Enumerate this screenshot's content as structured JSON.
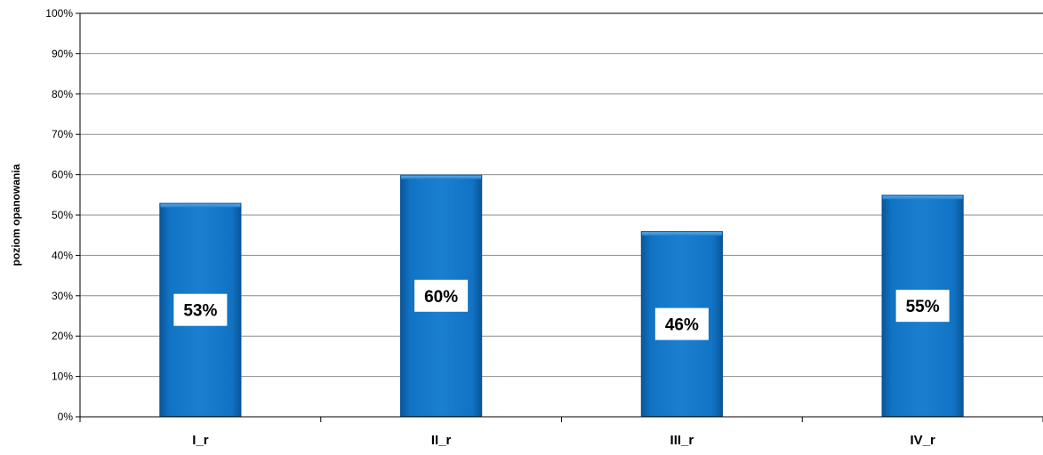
{
  "chart_data": {
    "type": "bar",
    "categories": [
      "I_r",
      "II_r",
      "III_r",
      "IV_r"
    ],
    "values": [
      53,
      60,
      46,
      55
    ],
    "data_labels": [
      "53%",
      "60%",
      "46%",
      "55%"
    ],
    "title": "",
    "xlabel": "",
    "ylabel": "poziom opanowania",
    "ylim": [
      0,
      100
    ],
    "yticks": [
      0,
      10,
      20,
      30,
      40,
      50,
      60,
      70,
      80,
      90,
      100
    ],
    "ytick_labels": [
      "0%",
      "10%",
      "20%",
      "30%",
      "40%",
      "50%",
      "60%",
      "70%",
      "80%",
      "90%",
      "100%"
    ],
    "grid": true,
    "legend": "none",
    "colors": {
      "bar": "#1173c4",
      "bar_light": "#3a97e4",
      "bar_dark": "#0a5597",
      "grid": "#8c8c8c",
      "axis": "#000000",
      "label_box": "#ffffff"
    }
  }
}
